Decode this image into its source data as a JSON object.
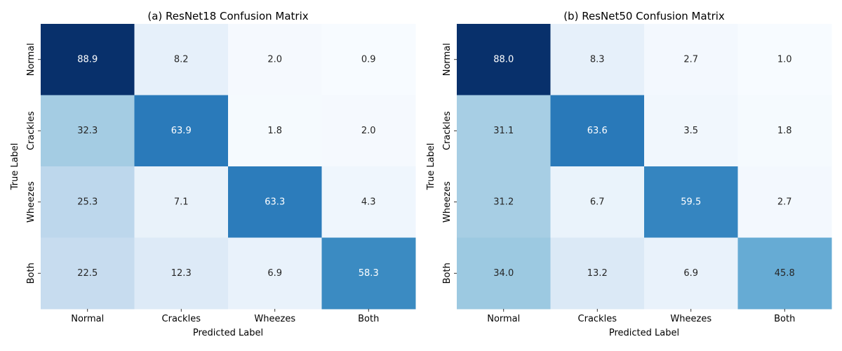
{
  "chart_data": [
    {
      "type": "heatmap",
      "title": "(a) ResNet18 Confusion Matrix",
      "xlabel": "Predicted Label",
      "ylabel": "True Label",
      "x_categories": [
        "Normal",
        "Crackles",
        "Wheezes",
        "Both"
      ],
      "y_categories": [
        "Normal",
        "Crackles",
        "Wheezes",
        "Both"
      ],
      "values": [
        [
          88.9,
          8.2,
          2.0,
          0.9
        ],
        [
          32.3,
          63.9,
          1.8,
          2.0
        ],
        [
          25.3,
          7.1,
          63.3,
          4.3
        ],
        [
          22.5,
          12.3,
          6.9,
          58.3
        ]
      ],
      "cell_labels": [
        [
          "88.9",
          "8.2",
          "2.0",
          "0.9"
        ],
        [
          "32.3",
          "63.9",
          "1.8",
          "2.0"
        ],
        [
          "25.3",
          "7.1",
          "63.3",
          "4.3"
        ],
        [
          "22.5",
          "12.3",
          "6.9",
          "58.3"
        ]
      ],
      "colormap": "Blues"
    },
    {
      "type": "heatmap",
      "title": "(b) ResNet50 Confusion Matrix",
      "xlabel": "Predicted Label",
      "ylabel": "True Label",
      "x_categories": [
        "Normal",
        "Crackles",
        "Wheezes",
        "Both"
      ],
      "y_categories": [
        "Normal",
        "Crackles",
        "Wheezes",
        "Both"
      ],
      "values": [
        [
          88.0,
          8.3,
          2.7,
          1.0
        ],
        [
          31.1,
          63.6,
          3.5,
          1.8
        ],
        [
          31.2,
          6.7,
          59.5,
          2.7
        ],
        [
          34.0,
          13.2,
          6.9,
          45.8
        ]
      ],
      "cell_labels": [
        [
          "88.0",
          "8.3",
          "2.7",
          "1.0"
        ],
        [
          "31.1",
          "63.6",
          "3.5",
          "1.8"
        ],
        [
          "31.2",
          "6.7",
          "59.5",
          "2.7"
        ],
        [
          "34.0",
          "13.2",
          "6.9",
          "45.8"
        ]
      ],
      "colormap": "Blues"
    }
  ]
}
